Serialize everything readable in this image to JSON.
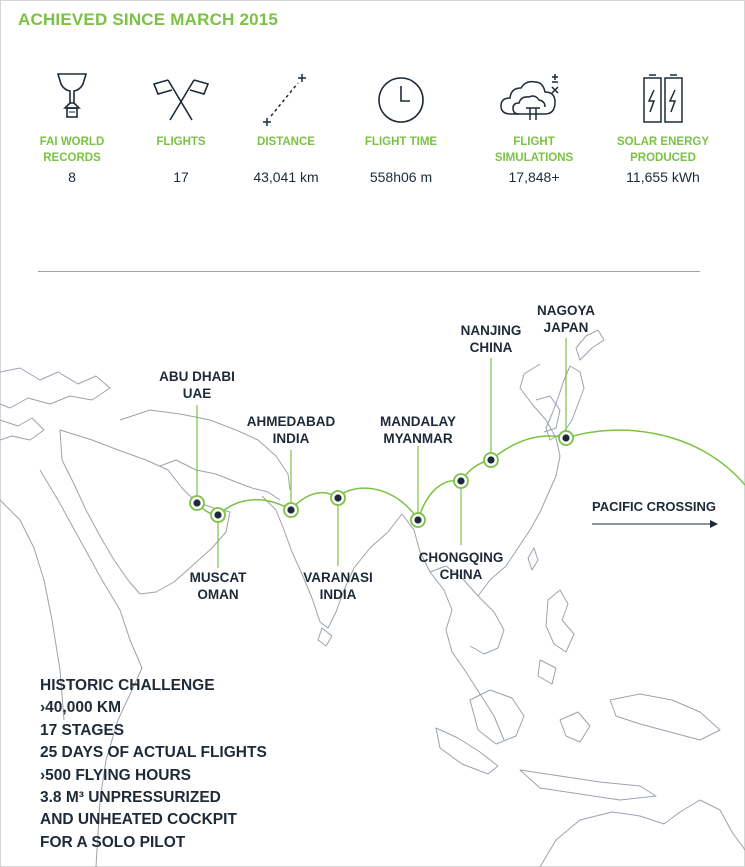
{
  "headline": "ACHIEVED SINCE MARCH 2015",
  "stats": [
    {
      "icon": "trophy-icon",
      "label": "FAI WORLD\nRECORDS",
      "value": "8"
    },
    {
      "icon": "crossed-flags-icon",
      "label": "FLIGHTS",
      "value": "17"
    },
    {
      "icon": "distance-icon",
      "label": "DISTANCE",
      "value": "43,041 km"
    },
    {
      "icon": "clock-icon",
      "label": "FLIGHT TIME",
      "value": "558h06 m"
    },
    {
      "icon": "cloud-computing-icon",
      "label": "FLIGHT\nSIMULATIONS",
      "value": "17,848+"
    },
    {
      "icon": "battery-icon",
      "label": "SOLAR ENERGY\nPRODUCED",
      "value": "11,655 kWh"
    }
  ],
  "cities": [
    {
      "id": "abu-dhabi",
      "line1": "ABU DHABI",
      "line2": "UAE"
    },
    {
      "id": "muscat",
      "line1": "MUSCAT",
      "line2": "OMAN"
    },
    {
      "id": "ahmedabad",
      "line1": "AHMEDABAD",
      "line2": "INDIA"
    },
    {
      "id": "varanasi",
      "line1": "VARANASI",
      "line2": "INDIA"
    },
    {
      "id": "mandalay",
      "line1": "MANDALAY",
      "line2": "MYANMAR"
    },
    {
      "id": "chongqing",
      "line1": "CHONGQING",
      "line2": "CHINA"
    },
    {
      "id": "nanjing",
      "line1": "NANJING",
      "line2": "CHINA"
    },
    {
      "id": "nagoya",
      "line1": "NAGOYA",
      "line2": "JAPAN"
    }
  ],
  "pacific_label": "PACIFIC CROSSING",
  "facts": [
    "HISTORIC CHALLENGE",
    "›40,000 KM",
    "17 STAGES",
    "25 DAYS OF ACTUAL FLIGHTS",
    "›500 FLYING HOURS",
    "3.8 M³ UNPRESSURIZED",
    "AND UNHEATED COCKPIT",
    "FOR A SOLO PILOT"
  ],
  "colors": {
    "accent": "#7cc242",
    "text": "#1e2a38",
    "map_outline": "#9aa3ad"
  }
}
